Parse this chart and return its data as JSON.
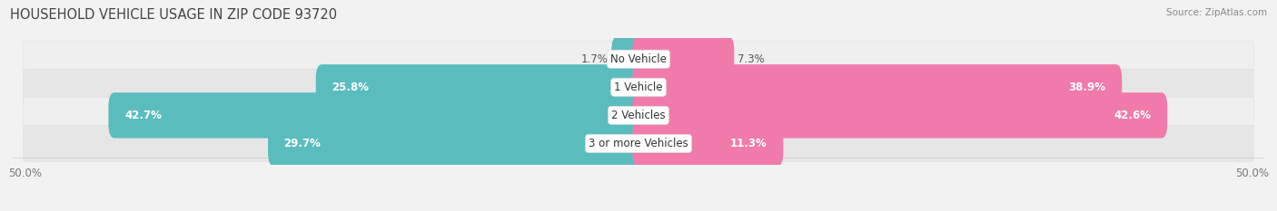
{
  "title": "HOUSEHOLD VEHICLE USAGE IN ZIP CODE 93720",
  "source": "Source: ZipAtlas.com",
  "categories": [
    "No Vehicle",
    "1 Vehicle",
    "2 Vehicles",
    "3 or more Vehicles"
  ],
  "owner_values": [
    1.7,
    25.8,
    42.7,
    29.7
  ],
  "renter_values": [
    7.3,
    38.9,
    42.6,
    11.3
  ],
  "owner_color": "#5bbcbe",
  "renter_color": "#f07baa",
  "xlim_left": -50.0,
  "xlim_right": 50.0,
  "bg_color": "#f2f2f2",
  "row_colors": [
    "#efefef",
    "#e6e6e6",
    "#efefef",
    "#e6e6e6"
  ],
  "title_fontsize": 10.5,
  "source_fontsize": 7.5,
  "value_fontsize": 8.5,
  "category_fontsize": 8.5,
  "axis_label_fontsize": 8.5
}
